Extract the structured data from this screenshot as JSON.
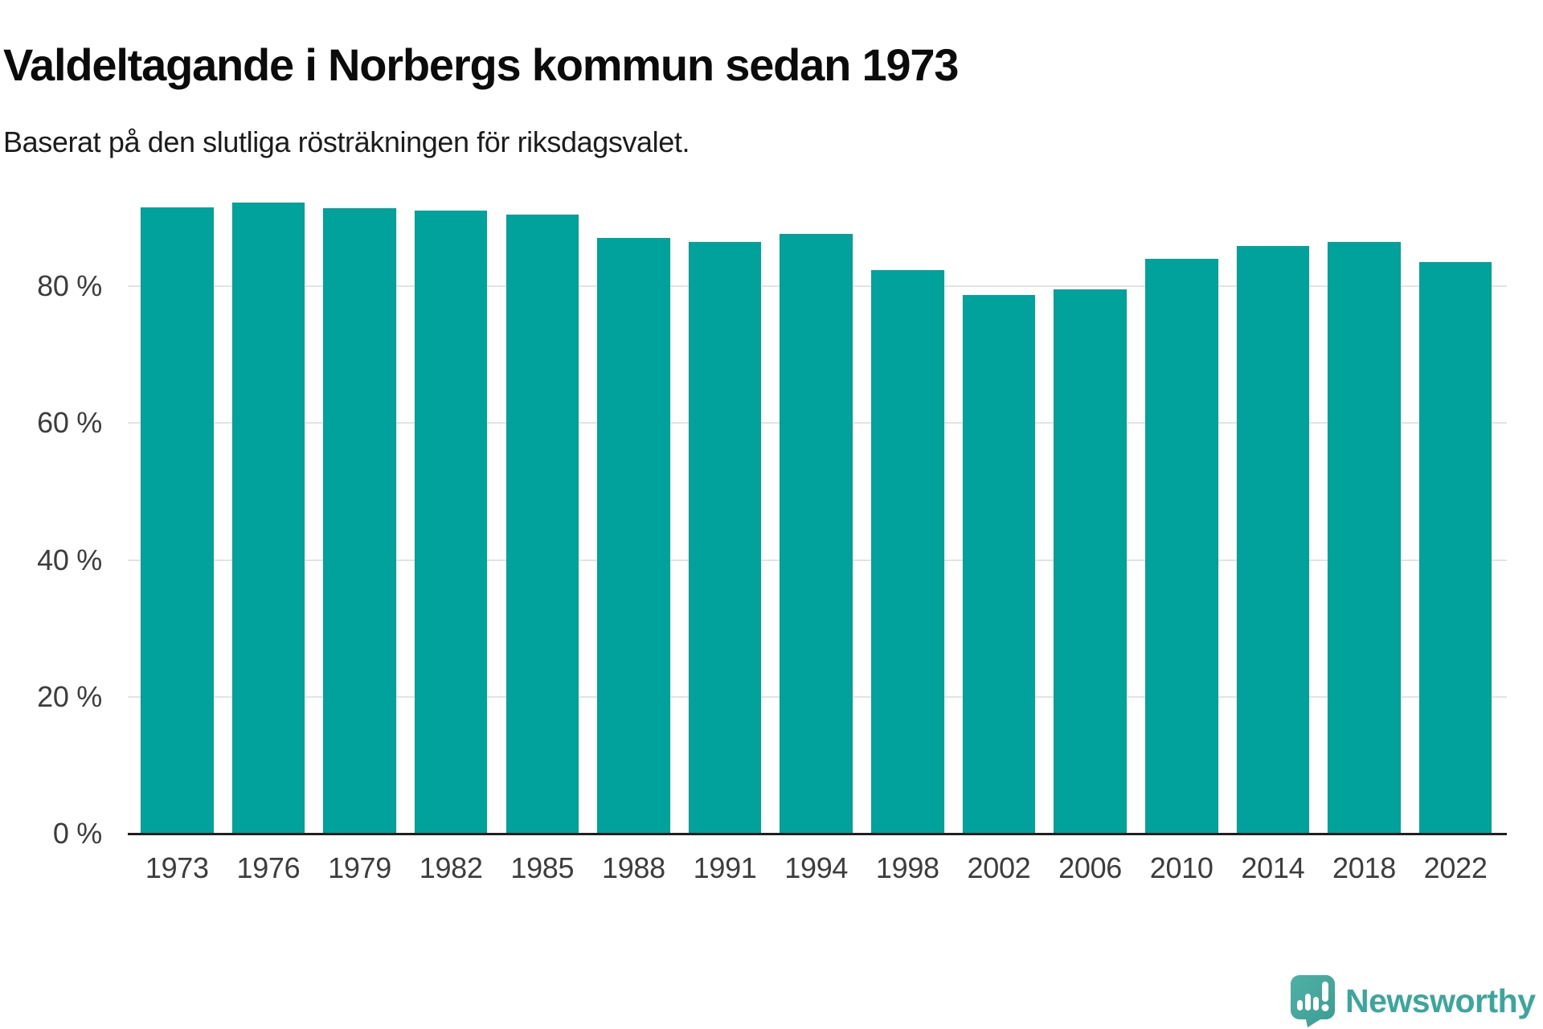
{
  "header": {
    "title": "Valdeltagande i Norbergs kommun sedan 1973",
    "subtitle": "Baserat på den slutliga rösträkningen för riksdagsvalet."
  },
  "chart_data": {
    "type": "bar",
    "title": "Valdeltagande i Norbergs kommun sedan 1973",
    "subtitle": "Baserat på den slutliga rösträkningen för riksdagsvalet.",
    "categories": [
      "1973",
      "1976",
      "1979",
      "1982",
      "1985",
      "1988",
      "1991",
      "1994",
      "1998",
      "2002",
      "2006",
      "2010",
      "2014",
      "2018",
      "2022"
    ],
    "values": [
      91.5,
      92.2,
      91.4,
      91.0,
      90.4,
      87.1,
      86.5,
      87.6,
      82.4,
      78.7,
      79.5,
      84.0,
      85.9,
      86.5,
      83.5
    ],
    "unit": "%",
    "xlabel": "",
    "ylabel": "",
    "ylim": [
      0,
      100
    ],
    "yticks": [
      0,
      20,
      40,
      60,
      80
    ],
    "ytick_label_format": "{value} %",
    "grid": true,
    "legend": "none",
    "bar_color": "#00a29b"
  },
  "footer": {
    "brand": "Newsworthy"
  },
  "colors": {
    "bar": "#00a29b",
    "gridline": "#e3e3e3",
    "axis_line": "#1f1f1f",
    "title_text": "#0b0b0b",
    "subtitle_text": "#1c1c1c",
    "tick_text": "#3d3d3d",
    "brand_teal": "#3ba79c",
    "background": "#ffffff"
  }
}
